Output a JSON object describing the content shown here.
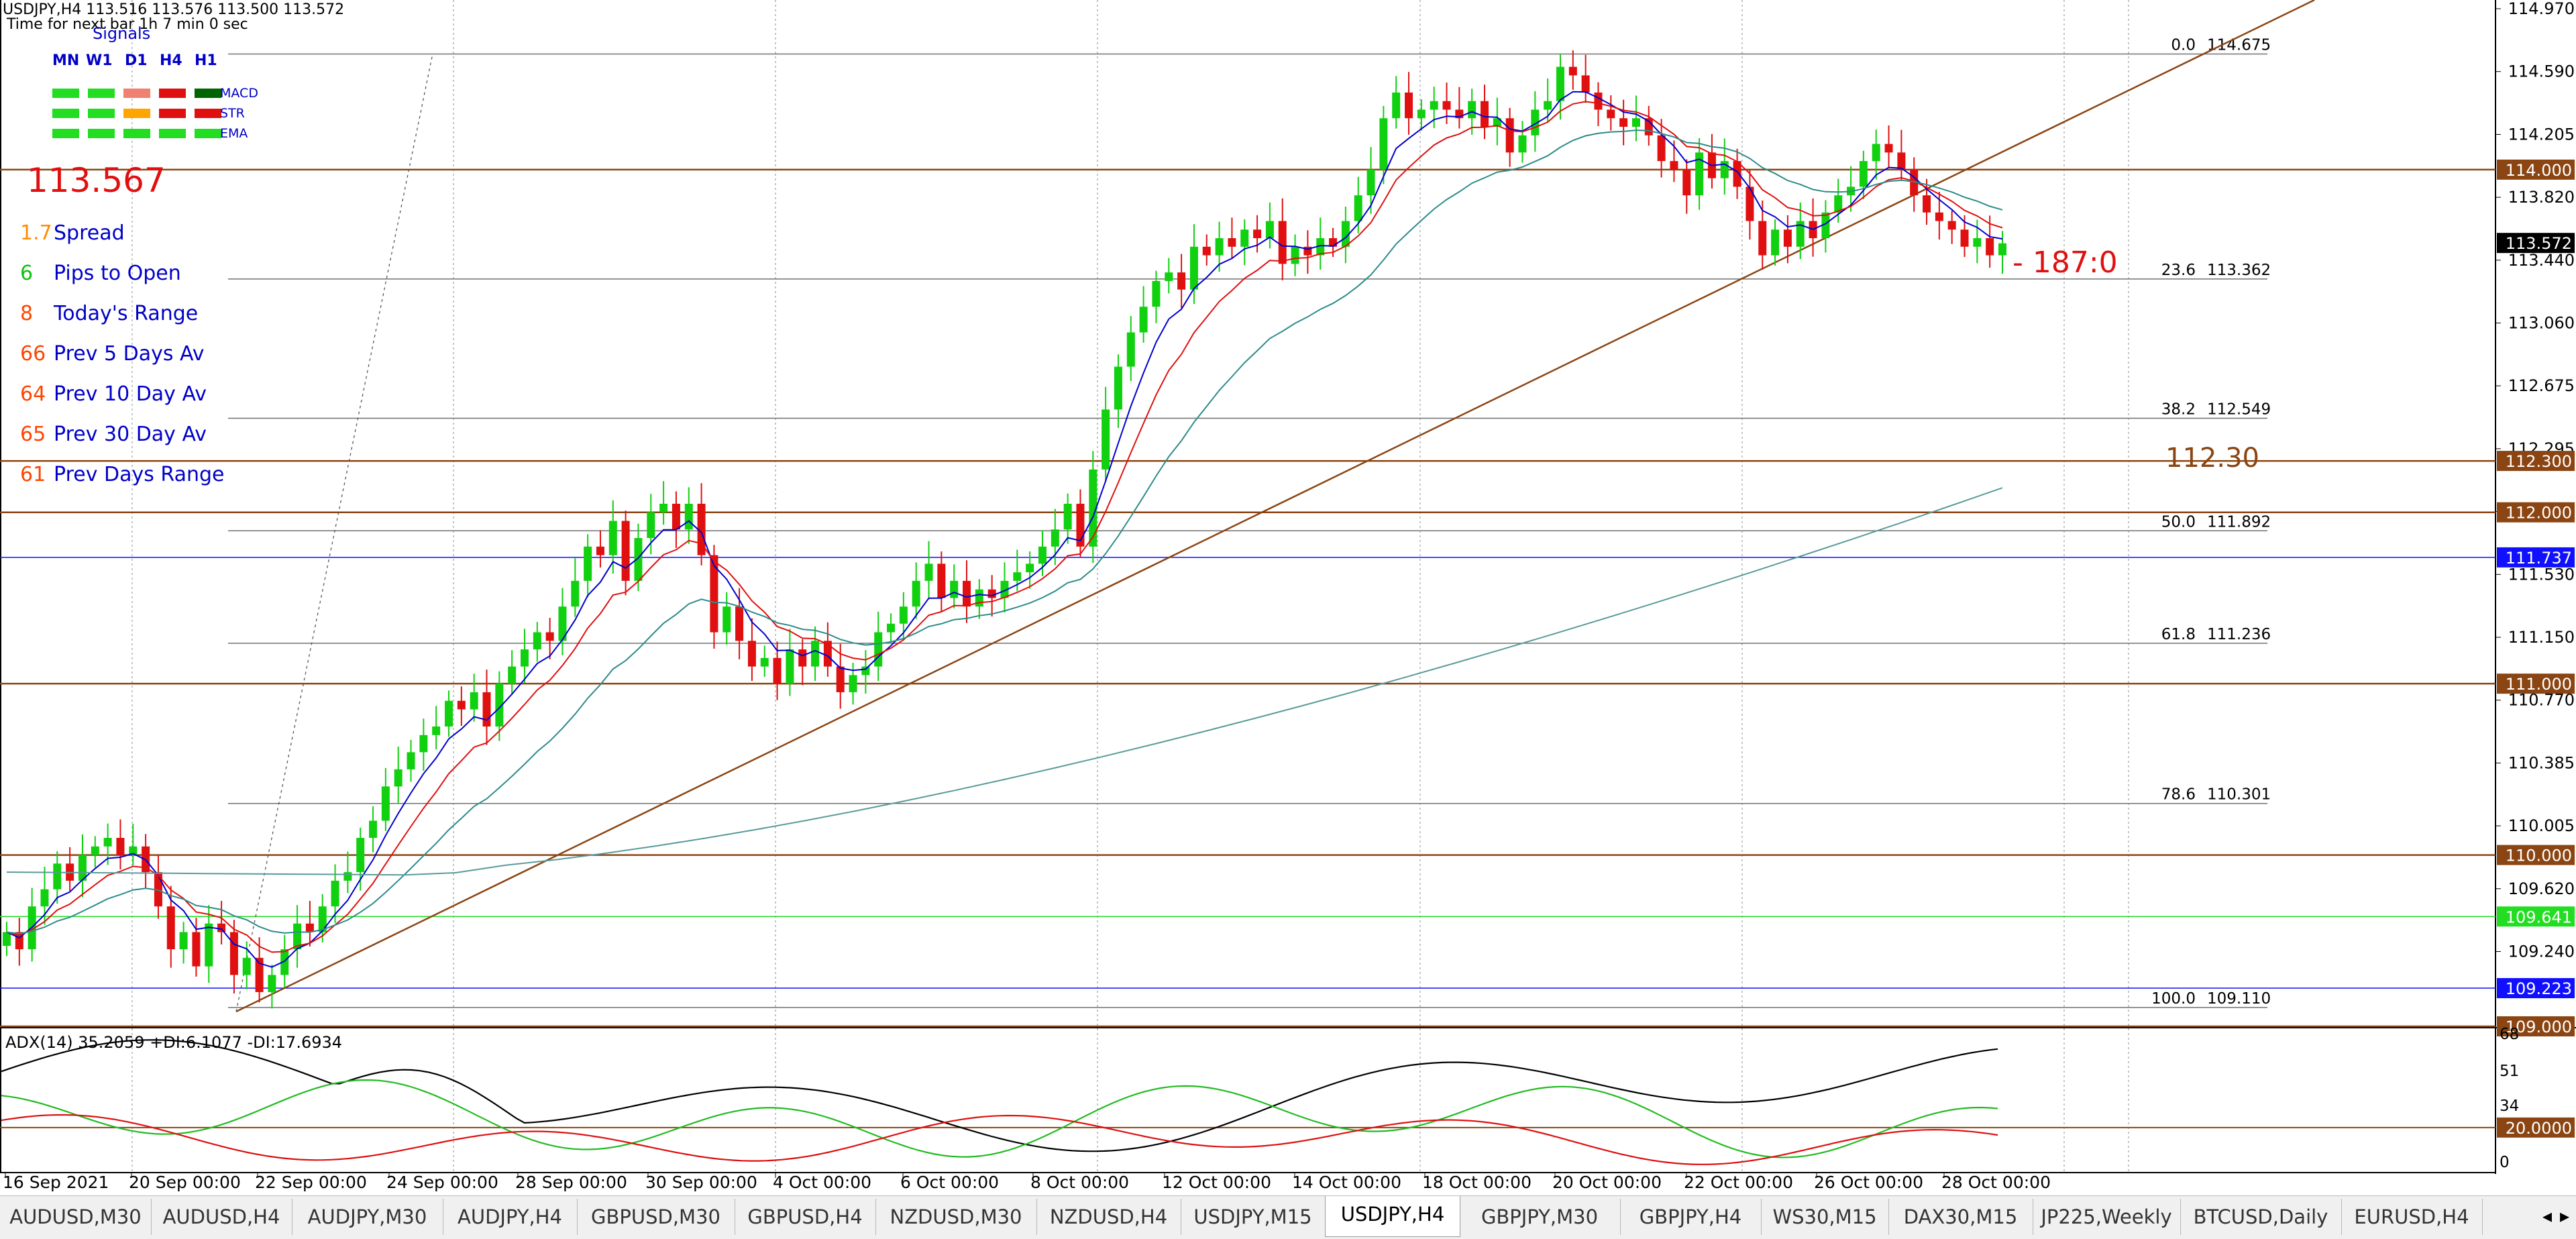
{
  "header": {
    "symbol_line": "USDJPY,H4  113.516 113.576 113.500 113.572",
    "next_bar": "Time for next bar 1h 7 min 0 sec"
  },
  "signals": {
    "title": "Signals",
    "timeframes": [
      "MN",
      "W1",
      "D1",
      "H4",
      "H1"
    ],
    "rows": [
      {
        "name": "MACD",
        "colors": [
          "#22dd22",
          "#22dd22",
          "#f08070",
          "#e01010",
          "#006400"
        ]
      },
      {
        "name": "STR",
        "colors": [
          "#22dd22",
          "#22dd22",
          "#ffa500",
          "#e01010",
          "#e01010"
        ]
      },
      {
        "name": "EMA",
        "colors": [
          "#22dd22",
          "#22dd22",
          "#22dd22",
          "#22dd22",
          "#22dd22"
        ]
      }
    ]
  },
  "stats": {
    "bid": "113.567",
    "rows": [
      {
        "value": "1.7",
        "label": "Spread",
        "color": "#ff8c00"
      },
      {
        "value": "6",
        "label": "Pips to Open",
        "color": "#10c010"
      },
      {
        "value": "8",
        "label": "Today's Range",
        "color": "#ff4500"
      },
      {
        "value": "66",
        "label": "Prev 5 Days Av",
        "color": "#ff4500"
      },
      {
        "value": "64",
        "label": "Prev 10 Day Av",
        "color": "#ff4500"
      },
      {
        "value": "65",
        "label": "Prev 30 Day Av",
        "color": "#ff4500"
      },
      {
        "value": "61",
        "label": "Prev Days Range",
        "color": "#ff4500"
      }
    ]
  },
  "annotations": {
    "countdown": "- 187:0",
    "level_text": "112.30"
  },
  "price_axis": {
    "ticks": [
      "114.970",
      "114.590",
      "114.205",
      "113.820",
      "113.440",
      "113.060",
      "112.675",
      "112.295",
      "111.915",
      "111.530",
      "111.150",
      "110.770",
      "110.385",
      "110.005",
      "109.620",
      "109.240"
    ],
    "ymin": 109.0,
    "ymax": 114.99,
    "current_price": "113.572"
  },
  "horizontal_levels": [
    {
      "price": 114.0,
      "label": "114.000",
      "color": "#8b4513"
    },
    {
      "price": 112.3,
      "label": "112.300",
      "color": "#8b4513"
    },
    {
      "price": 112.0,
      "label": "112.000",
      "color": "#8b4513"
    },
    {
      "price": 111.737,
      "label": "111.737",
      "color": "#1010ff"
    },
    {
      "price": 111.0,
      "label": "111.000",
      "color": "#8b4513"
    },
    {
      "price": 110.0,
      "label": "110.000",
      "color": "#8b4513"
    },
    {
      "price": 109.641,
      "label": "109.641",
      "color": "#22dd22"
    },
    {
      "price": 109.223,
      "label": "109.223",
      "color": "#1010ff"
    },
    {
      "price": 109.0,
      "label": "109.000",
      "color": "#8b4513"
    }
  ],
  "fibonacci": [
    {
      "ratio": "0.0",
      "price": 114.675,
      "label": "114.675"
    },
    {
      "ratio": "23.6",
      "price": 113.362,
      "label": "113.362"
    },
    {
      "ratio": "38.2",
      "price": 112.549,
      "label": "112.549"
    },
    {
      "ratio": "50.0",
      "price": 111.892,
      "label": "111.892"
    },
    {
      "ratio": "61.8",
      "price": 111.236,
      "label": "111.236"
    },
    {
      "ratio": "78.6",
      "price": 110.301,
      "label": "110.301"
    },
    {
      "ratio": "100.0",
      "price": 109.11,
      "label": "109.110"
    }
  ],
  "time_axis": {
    "labels": [
      "16 Sep 2021",
      "20 Sep 00:00",
      "22 Sep 00:00",
      "24 Sep 00:00",
      "28 Sep 00:00",
      "30 Sep 00:00",
      "4 Oct 00:00",
      "6 Oct 00:00",
      "8 Oct 00:00",
      "12 Oct 00:00",
      "14 Oct 00:00",
      "18 Oct 00:00",
      "20 Oct 00:00",
      "22 Oct 00:00",
      "26 Oct 00:00",
      "28 Oct 00:00"
    ]
  },
  "adx": {
    "title": "ADX(14) 35.2059 +DI:6.1077 -DI:17.6934",
    "ticks": [
      "68",
      "51",
      "34",
      "17",
      "0"
    ],
    "level": {
      "value": 20,
      "label": "20.0000"
    },
    "ymax": 70,
    "colors": {
      "adx": "#000000",
      "plus_di": "#22bb22",
      "minus_di": "#dd1010"
    }
  },
  "chart_data": {
    "type": "candlestick",
    "title": "USDJPY,H4",
    "ylim": [
      109.0,
      114.99
    ],
    "closes": [
      109.55,
      109.45,
      109.7,
      109.8,
      109.95,
      109.85,
      110.0,
      110.05,
      110.1,
      110.0,
      110.05,
      109.9,
      109.7,
      109.45,
      109.55,
      109.35,
      109.6,
      109.55,
      109.3,
      109.4,
      109.2,
      109.3,
      109.45,
      109.6,
      109.55,
      109.7,
      109.85,
      109.9,
      110.1,
      110.2,
      110.4,
      110.5,
      110.6,
      110.7,
      110.75,
      110.9,
      110.85,
      110.95,
      110.75,
      111.0,
      111.1,
      111.2,
      111.3,
      111.25,
      111.45,
      111.6,
      111.8,
      111.75,
      111.95,
      111.6,
      111.85,
      112.0,
      112.05,
      111.9,
      112.05,
      111.75,
      111.3,
      111.45,
      111.25,
      111.1,
      111.15,
      111.0,
      111.2,
      111.1,
      111.25,
      111.1,
      110.95,
      111.05,
      111.1,
      111.3,
      111.35,
      111.45,
      111.6,
      111.7,
      111.5,
      111.6,
      111.45,
      111.55,
      111.5,
      111.6,
      111.65,
      111.7,
      111.8,
      111.9,
      112.05,
      111.8,
      112.25,
      112.6,
      112.85,
      113.05,
      113.2,
      113.35,
      113.4,
      113.3,
      113.55,
      113.5,
      113.6,
      113.55,
      113.65,
      113.6,
      113.7,
      113.45,
      113.55,
      113.5,
      113.6,
      113.55,
      113.7,
      113.85,
      114.0,
      114.3,
      114.45,
      114.3,
      114.35,
      114.4,
      114.35,
      114.3,
      114.4,
      114.25,
      114.3,
      114.1,
      114.2,
      114.35,
      114.4,
      114.6,
      114.55,
      114.45,
      114.35,
      114.3,
      114.25,
      114.3,
      114.2,
      114.05,
      114.0,
      113.85,
      114.1,
      113.95,
      114.05,
      113.9,
      113.7,
      113.5,
      113.65,
      113.55,
      113.7,
      113.6,
      113.75,
      113.85,
      113.9,
      114.05,
      114.15,
      114.1,
      114.0,
      113.85,
      113.75,
      113.7,
      113.65,
      113.55,
      113.6,
      113.5,
      113.57
    ],
    "ema_fast_color": "#0000d0",
    "ema_mid_color": "#e01010",
    "ema_slow_color": "#2e8b8b",
    "trendline_color": "#8b4513"
  }
}
